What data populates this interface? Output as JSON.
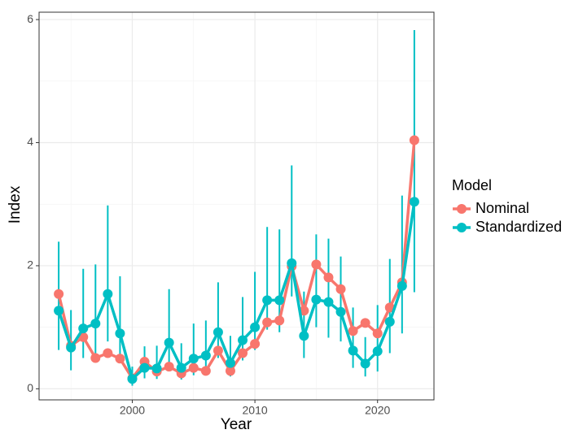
{
  "chart_data": {
    "type": "line",
    "x_label": "Year",
    "y_label": "Index",
    "legend_title": "Model",
    "legend_position": "right",
    "grid": true,
    "x": [
      1994,
      1995,
      1996,
      1997,
      1998,
      1999,
      2000,
      2001,
      2002,
      2003,
      2004,
      2005,
      2006,
      2007,
      2008,
      2009,
      2010,
      2011,
      2012,
      2013,
      2014,
      2015,
      2016,
      2017,
      2018,
      2019,
      2020,
      2021,
      2022,
      2023
    ],
    "xlim": [
      1992.4,
      2024.6
    ],
    "xticks": [
      2000,
      2010,
      2020
    ],
    "ylim": [
      -0.18,
      6.12
    ],
    "yticks": [
      0,
      2,
      4,
      6
    ],
    "series": [
      {
        "name": "Nominal",
        "color": "#F8766D",
        "values": [
          1.54,
          0.7,
          0.84,
          0.5,
          0.58,
          0.49,
          0.17,
          0.44,
          0.28,
          0.36,
          0.25,
          0.34,
          0.29,
          0.62,
          0.29,
          0.58,
          0.73,
          1.08,
          1.11,
          1.99,
          1.27,
          2.02,
          1.81,
          1.62,
          0.94,
          1.07,
          0.9,
          1.32,
          1.73,
          4.04
        ]
      },
      {
        "name": "Standardized",
        "color": "#00BFC4",
        "values": [
          1.27,
          0.67,
          0.98,
          1.06,
          1.54,
          0.9,
          0.16,
          0.34,
          0.33,
          0.75,
          0.34,
          0.49,
          0.54,
          0.92,
          0.42,
          0.79,
          1.0,
          1.44,
          1.44,
          2.04,
          0.86,
          1.45,
          1.41,
          1.25,
          0.62,
          0.41,
          0.61,
          1.09,
          1.67,
          3.04
        ],
        "lower": [
          0.63,
          0.3,
          0.5,
          0.54,
          0.77,
          0.55,
          0.05,
          0.17,
          0.16,
          0.4,
          0.15,
          0.22,
          0.26,
          0.5,
          0.2,
          0.46,
          0.63,
          0.96,
          0.92,
          1.5,
          0.5,
          1.0,
          0.83,
          0.77,
          0.34,
          0.2,
          0.28,
          0.58,
          0.9,
          1.57
        ],
        "upper": [
          2.39,
          1.28,
          1.95,
          2.02,
          2.98,
          1.83,
          0.36,
          0.69,
          0.7,
          1.62,
          0.74,
          1.06,
          1.11,
          1.73,
          0.86,
          1.49,
          1.9,
          2.63,
          2.59,
          3.63,
          1.58,
          2.51,
          2.44,
          2.15,
          1.32,
          0.84,
          1.36,
          2.11,
          3.14,
          5.83
        ]
      }
    ]
  }
}
